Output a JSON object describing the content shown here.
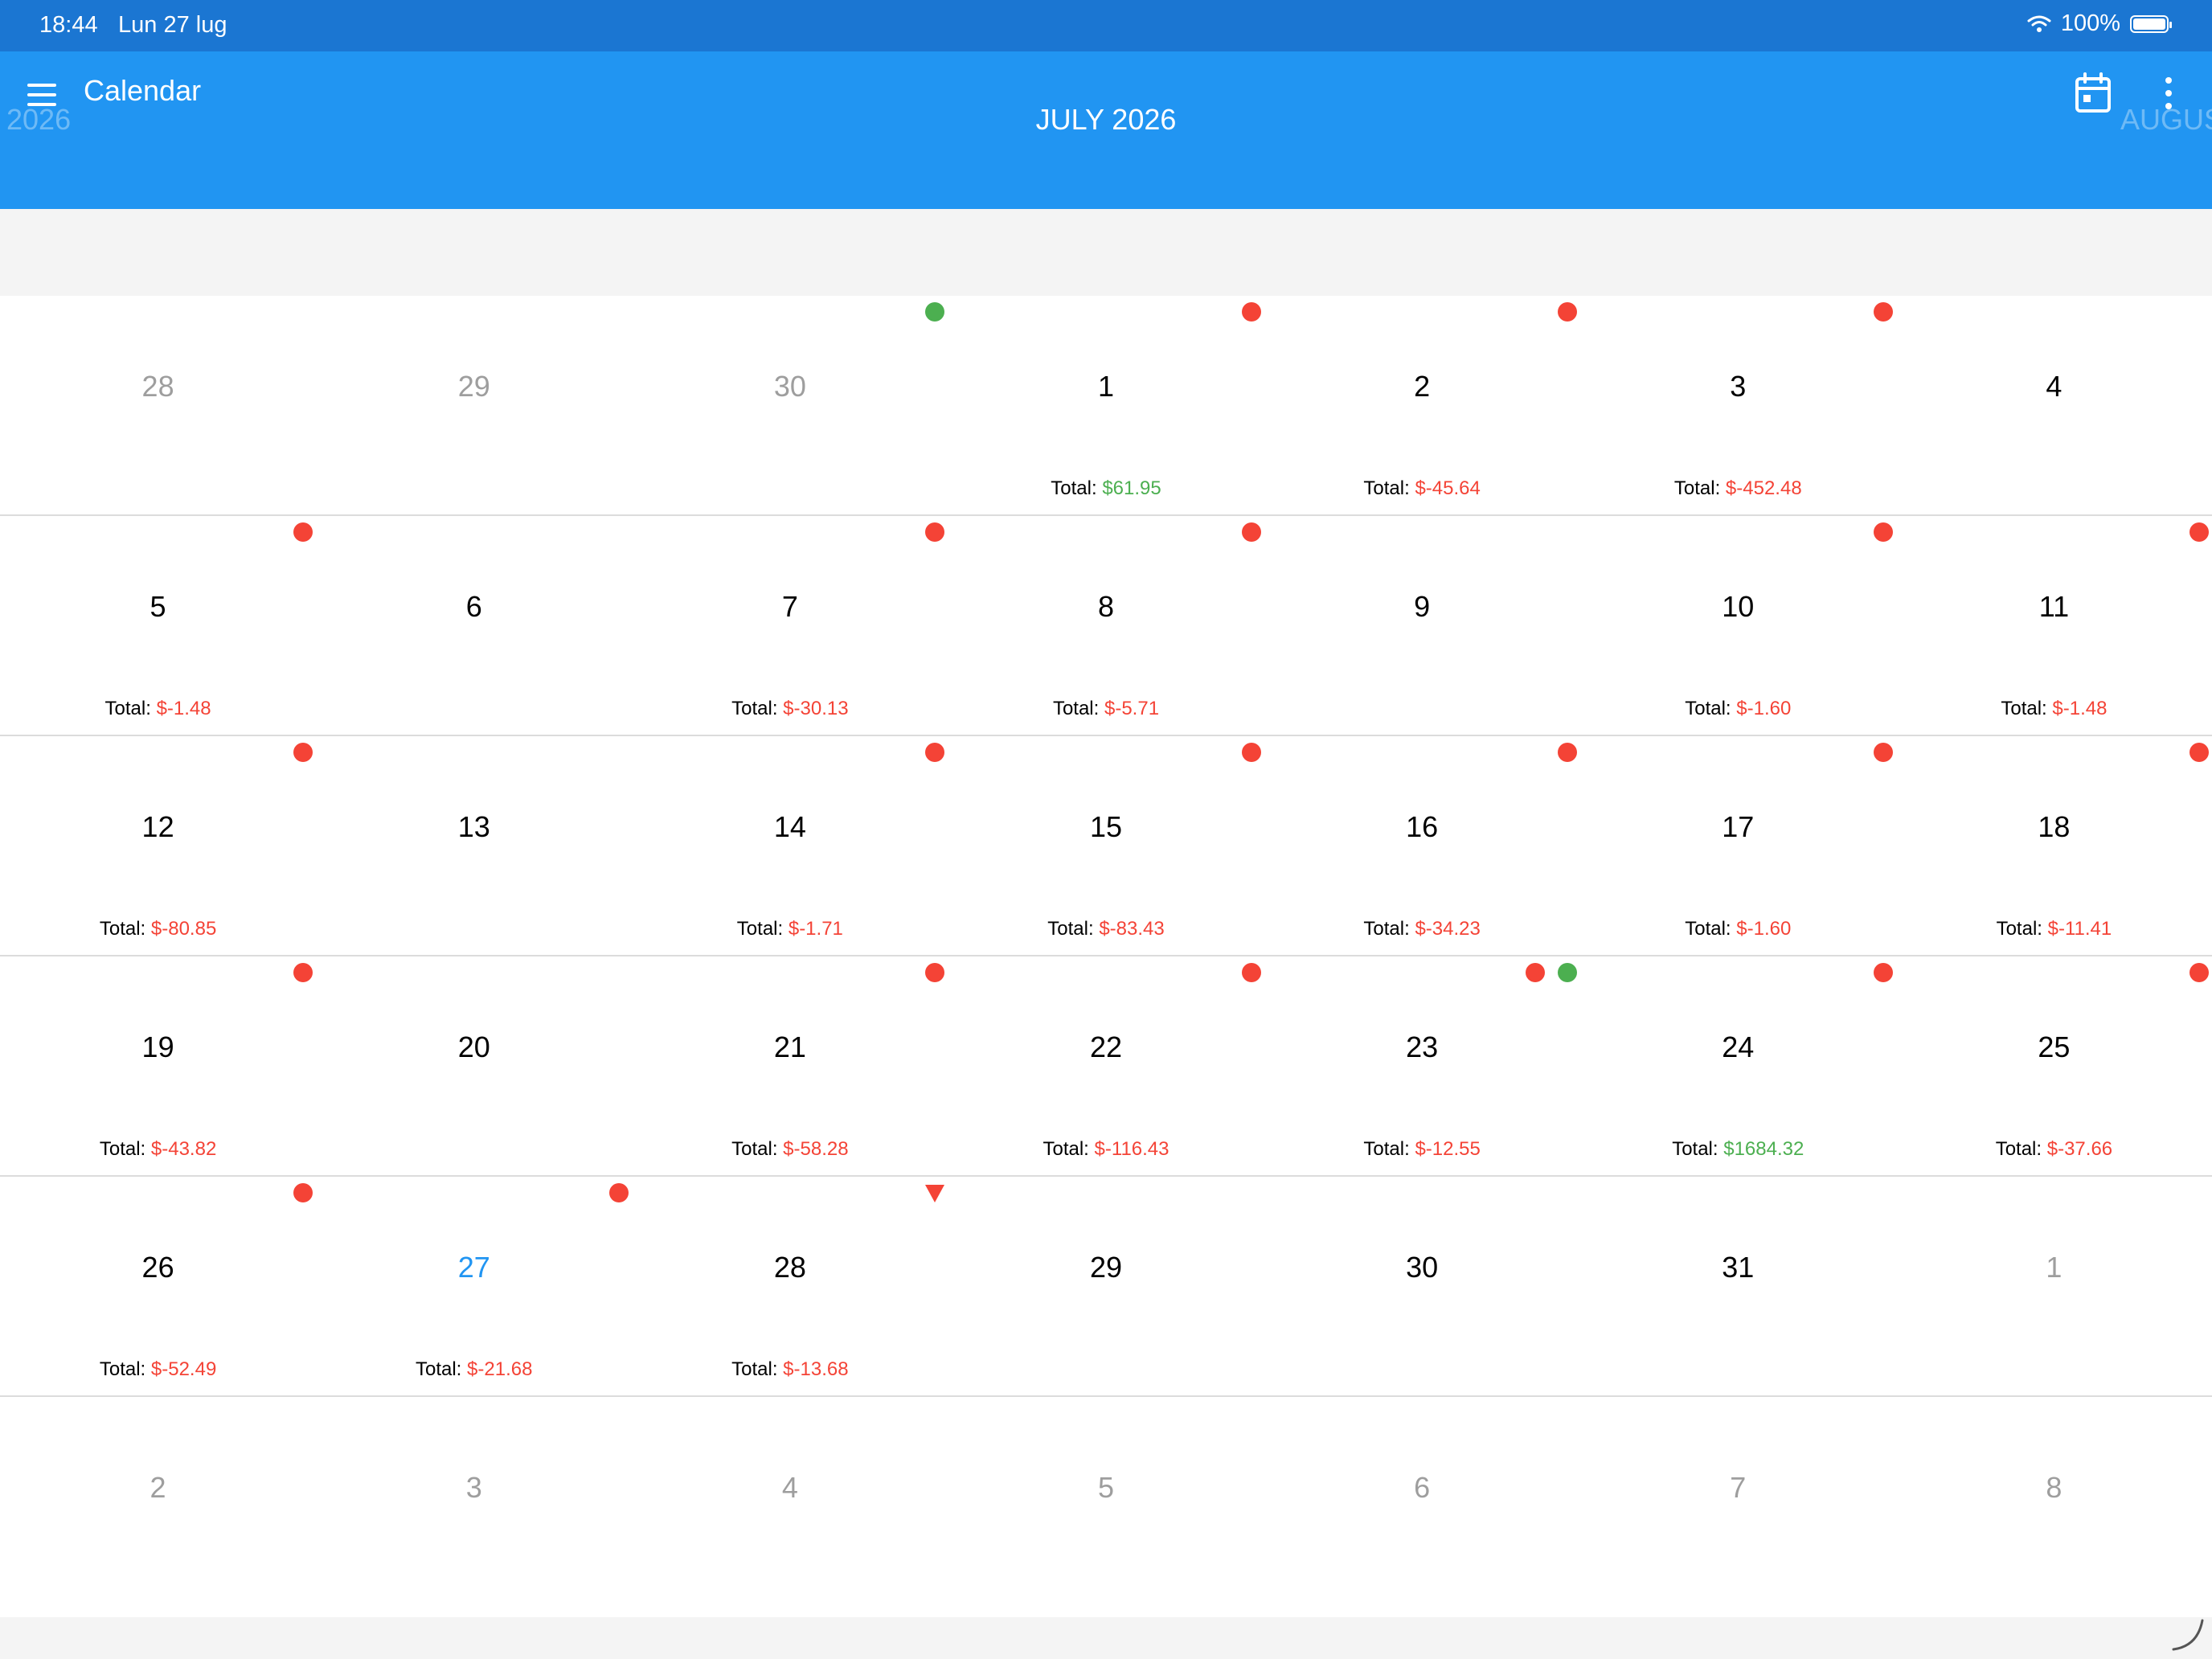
{
  "status_bar": {
    "time": "18:44",
    "date": "Lun 27 lug",
    "battery": "100%"
  },
  "app_bar": {
    "title": "Calendar"
  },
  "month_nav": {
    "prev": "2026",
    "current": "JULY 2026",
    "next": "AUGUST 2026"
  },
  "total_label": "Total:",
  "colors": {
    "accent": "#2195f2",
    "status_bar": "#1b76d2",
    "negative": "#f44336",
    "positive": "#4caf50"
  },
  "days": [
    {
      "day": "28",
      "muted": true
    },
    {
      "day": "29",
      "muted": true
    },
    {
      "day": "30",
      "muted": true,
      "markers": [
        "green"
      ]
    },
    {
      "day": "1",
      "total": "$61.95",
      "positive": true,
      "markers": [
        "red"
      ]
    },
    {
      "day": "2",
      "total": "$-45.64",
      "markers": [
        "red"
      ]
    },
    {
      "day": "3",
      "total": "$-452.48",
      "markers": [
        "red"
      ]
    },
    {
      "day": "4"
    },
    {
      "day": "5",
      "total": "$-1.48",
      "markers": [
        "red"
      ]
    },
    {
      "day": "6"
    },
    {
      "day": "7",
      "total": "$-30.13",
      "markers": [
        "red"
      ]
    },
    {
      "day": "8",
      "total": "$-5.71",
      "markers": [
        "red"
      ]
    },
    {
      "day": "9"
    },
    {
      "day": "10",
      "total": "$-1.60",
      "markers": [
        "red"
      ]
    },
    {
      "day": "11",
      "total": "$-1.48",
      "markers": [
        "red"
      ]
    },
    {
      "day": "12",
      "total": "$-80.85",
      "markers": [
        "red"
      ]
    },
    {
      "day": "13"
    },
    {
      "day": "14",
      "total": "$-1.71",
      "markers": [
        "red"
      ]
    },
    {
      "day": "15",
      "total": "$-83.43",
      "markers": [
        "red"
      ]
    },
    {
      "day": "16",
      "total": "$-34.23",
      "markers": [
        "red"
      ]
    },
    {
      "day": "17",
      "total": "$-1.60",
      "markers": [
        "red"
      ]
    },
    {
      "day": "18",
      "total": "$-11.41",
      "markers": [
        "red"
      ]
    },
    {
      "day": "19",
      "total": "$-43.82",
      "markers": [
        "red"
      ]
    },
    {
      "day": "20"
    },
    {
      "day": "21",
      "total": "$-58.28",
      "markers": [
        "red"
      ]
    },
    {
      "day": "22",
      "total": "$-116.43",
      "markers": [
        "red"
      ]
    },
    {
      "day": "23",
      "total": "$-12.55",
      "markers": [
        "red",
        "green"
      ]
    },
    {
      "day": "24",
      "total": "$1684.32",
      "positive": true,
      "markers": [
        "red"
      ]
    },
    {
      "day": "25",
      "total": "$-37.66",
      "markers": [
        "red"
      ]
    },
    {
      "day": "26",
      "total": "$-52.49",
      "markers": [
        "red"
      ]
    },
    {
      "day": "27",
      "total": "$-21.68",
      "today": true,
      "markers": [
        "red"
      ]
    },
    {
      "day": "28",
      "total": "$-13.68",
      "markers": [
        "triangle"
      ]
    },
    {
      "day": "29"
    },
    {
      "day": "30"
    },
    {
      "day": "31"
    },
    {
      "day": "1",
      "muted": true
    },
    {
      "day": "2",
      "muted": true
    },
    {
      "day": "3",
      "muted": true
    },
    {
      "day": "4",
      "muted": true
    },
    {
      "day": "5",
      "muted": true
    },
    {
      "day": "6",
      "muted": true
    },
    {
      "day": "7",
      "muted": true
    },
    {
      "day": "8",
      "muted": true
    }
  ]
}
